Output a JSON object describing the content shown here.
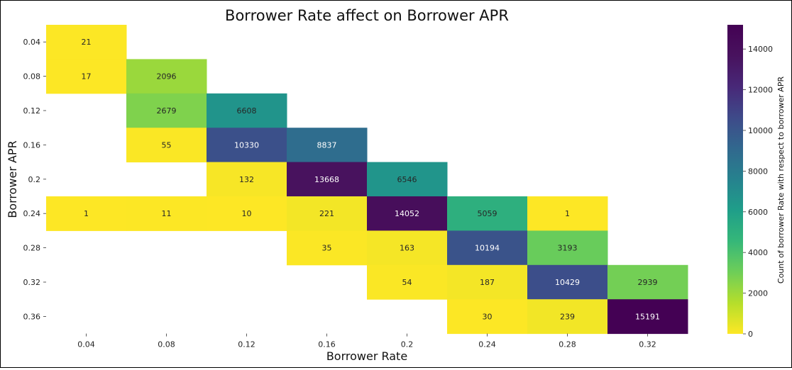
{
  "chart_data": {
    "type": "heatmap",
    "title": "Borrower Rate affect on Borrower APR",
    "xlabel": "Borrower Rate",
    "ylabel": "Borrower APR",
    "x_categories": [
      "0.04",
      "0.08",
      "0.12",
      "0.16",
      "0.2",
      "0.24",
      "0.28",
      "0.32"
    ],
    "y_categories": [
      "0.04",
      "0.08",
      "0.12",
      "0.16",
      "0.2",
      "0.24",
      "0.28",
      "0.32",
      "0.36"
    ],
    "values": [
      [
        21,
        null,
        null,
        null,
        null,
        null,
        null,
        null
      ],
      [
        17,
        2096,
        null,
        null,
        null,
        null,
        null,
        null
      ],
      [
        null,
        2679,
        6608,
        null,
        null,
        null,
        null,
        null
      ],
      [
        null,
        55,
        10330,
        8837,
        null,
        null,
        null,
        null
      ],
      [
        null,
        null,
        132,
        13668,
        6546,
        null,
        null,
        null
      ],
      [
        1,
        11,
        10,
        221,
        14052,
        5059,
        1,
        null
      ],
      [
        null,
        null,
        null,
        35,
        163,
        10194,
        3193,
        null
      ],
      [
        null,
        null,
        null,
        null,
        54,
        187,
        10429,
        2939
      ],
      [
        null,
        null,
        null,
        null,
        null,
        30,
        239,
        15191
      ]
    ],
    "colorbar": {
      "label": "Count of borrower Rate with respect to borrower APR",
      "min": 0,
      "max": 15191,
      "ticks": [
        "0",
        "2000",
        "4000",
        "6000",
        "8000",
        "10000",
        "12000",
        "14000"
      ],
      "colormap": "viridis_r"
    },
    "grid": false
  }
}
